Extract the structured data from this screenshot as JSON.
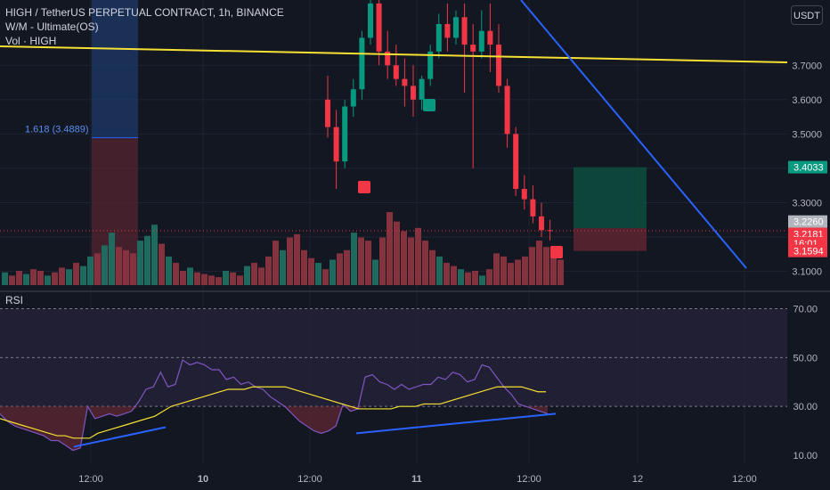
{
  "header": {
    "title": "HIGH / TetherUS PERPETUAL CONTRACT, 1h, BINANCE",
    "indicator1": "W/M - Ultimate(OS)",
    "indicator2": "Vol · HIGH",
    "currency_button": "USDT",
    "rsi_label": "RSI"
  },
  "chart_data": {
    "type": "candlestick",
    "price_axis": {
      "range": [
        3.06,
        3.89
      ],
      "ticks": [
        "3.7000",
        "3.6000",
        "3.5000",
        "3.4000",
        "3.3000",
        "3.2000",
        "3.1000"
      ]
    },
    "price_tags": [
      {
        "label": "3.4033",
        "color": "#089981"
      },
      {
        "label": "3.2260",
        "color": "#b2b5be"
      },
      {
        "label": "3.2181",
        "color": "#f23645"
      },
      {
        "label": "16:01",
        "color": "#f23645"
      },
      {
        "label": "3.1594",
        "color": "#f23645"
      }
    ],
    "fib_label": "1.618 (3.4889)",
    "fib_level": 3.4889,
    "candles": [
      {
        "o": 3.6,
        "h": 3.67,
        "l": 3.49,
        "c": 3.52
      },
      {
        "o": 3.52,
        "h": 3.57,
        "l": 3.34,
        "c": 3.42
      },
      {
        "o": 3.42,
        "h": 3.6,
        "l": 3.4,
        "c": 3.58
      },
      {
        "o": 3.58,
        "h": 3.66,
        "l": 3.55,
        "c": 3.63
      },
      {
        "o": 3.63,
        "h": 3.8,
        "l": 3.6,
        "c": 3.78
      },
      {
        "o": 3.78,
        "h": 3.9,
        "l": 3.76,
        "c": 3.88
      },
      {
        "o": 3.88,
        "h": 3.9,
        "l": 3.7,
        "c": 3.74
      },
      {
        "o": 3.74,
        "h": 3.8,
        "l": 3.66,
        "c": 3.7
      },
      {
        "o": 3.7,
        "h": 3.76,
        "l": 3.64,
        "c": 3.66
      },
      {
        "o": 3.66,
        "h": 3.72,
        "l": 3.58,
        "c": 3.64
      },
      {
        "o": 3.64,
        "h": 3.7,
        "l": 3.55,
        "c": 3.6
      },
      {
        "o": 3.6,
        "h": 3.67,
        "l": 3.57,
        "c": 3.66
      },
      {
        "o": 3.66,
        "h": 3.76,
        "l": 3.64,
        "c": 3.74
      },
      {
        "o": 3.74,
        "h": 3.85,
        "l": 3.72,
        "c": 3.82
      },
      {
        "o": 3.82,
        "h": 3.88,
        "l": 3.74,
        "c": 3.78
      },
      {
        "o": 3.78,
        "h": 3.86,
        "l": 3.76,
        "c": 3.84
      },
      {
        "o": 3.84,
        "h": 3.88,
        "l": 3.62,
        "c": 3.76
      },
      {
        "o": 3.76,
        "h": 3.82,
        "l": 3.4,
        "c": 3.74
      },
      {
        "o": 3.74,
        "h": 3.86,
        "l": 3.72,
        "c": 3.8
      },
      {
        "o": 3.8,
        "h": 3.88,
        "l": 3.68,
        "c": 3.76
      },
      {
        "o": 3.76,
        "h": 3.82,
        "l": 3.62,
        "c": 3.64
      },
      {
        "o": 3.64,
        "h": 3.66,
        "l": 3.46,
        "c": 3.5
      },
      {
        "o": 3.5,
        "h": 3.52,
        "l": 3.32,
        "c": 3.34
      },
      {
        "o": 3.34,
        "h": 3.38,
        "l": 3.28,
        "c": 3.31
      },
      {
        "o": 3.31,
        "h": 3.35,
        "l": 3.24,
        "c": 3.26
      },
      {
        "o": 3.26,
        "h": 3.3,
        "l": 3.2,
        "c": 3.22
      },
      {
        "o": 3.22,
        "h": 3.25,
        "l": 3.19,
        "c": 3.218
      }
    ],
    "volume": [
      {
        "v": 8,
        "up": true
      },
      {
        "v": 6,
        "up": false
      },
      {
        "v": 9,
        "up": false
      },
      {
        "v": 7,
        "up": true
      },
      {
        "v": 10,
        "up": false
      },
      {
        "v": 9,
        "up": false
      },
      {
        "v": 6,
        "up": true
      },
      {
        "v": 8,
        "up": false
      },
      {
        "v": 11,
        "up": false
      },
      {
        "v": 10,
        "up": true
      },
      {
        "v": 14,
        "up": false
      },
      {
        "v": 12,
        "up": true
      },
      {
        "v": 18,
        "up": true
      },
      {
        "v": 20,
        "up": false
      },
      {
        "v": 25,
        "up": true
      },
      {
        "v": 33,
        "up": true
      },
      {
        "v": 24,
        "up": false
      },
      {
        "v": 22,
        "up": false
      },
      {
        "v": 20,
        "up": false
      },
      {
        "v": 28,
        "up": true
      },
      {
        "v": 31,
        "up": true
      },
      {
        "v": 38,
        "up": true
      },
      {
        "v": 26,
        "up": false
      },
      {
        "v": 18,
        "up": true
      },
      {
        "v": 14,
        "up": false
      },
      {
        "v": 9,
        "up": false
      },
      {
        "v": 11,
        "up": true
      },
      {
        "v": 8,
        "up": false
      },
      {
        "v": 7,
        "up": false
      },
      {
        "v": 6,
        "up": false
      },
      {
        "v": 5,
        "up": false
      },
      {
        "v": 9,
        "up": true
      },
      {
        "v": 8,
        "up": false
      },
      {
        "v": 6,
        "up": false
      },
      {
        "v": 12,
        "up": true
      },
      {
        "v": 14,
        "up": false
      },
      {
        "v": 11,
        "up": false
      },
      {
        "v": 18,
        "up": false
      },
      {
        "v": 28,
        "up": false
      },
      {
        "v": 22,
        "up": true
      },
      {
        "v": 30,
        "up": false
      },
      {
        "v": 32,
        "up": false
      },
      {
        "v": 22,
        "up": false
      },
      {
        "v": 17,
        "up": false
      },
      {
        "v": 14,
        "up": true
      },
      {
        "v": 10,
        "up": false
      },
      {
        "v": 16,
        "up": true
      },
      {
        "v": 20,
        "up": false
      },
      {
        "v": 22,
        "up": false
      },
      {
        "v": 33,
        "up": true
      },
      {
        "v": 30,
        "up": false
      },
      {
        "v": 28,
        "up": false
      },
      {
        "v": 16,
        "up": true
      },
      {
        "v": 30,
        "up": false
      },
      {
        "v": 46,
        "up": false
      },
      {
        "v": 40,
        "up": false
      },
      {
        "v": 34,
        "up": false
      },
      {
        "v": 30,
        "up": false
      },
      {
        "v": 36,
        "up": false
      },
      {
        "v": 28,
        "up": false
      },
      {
        "v": 22,
        "up": false
      },
      {
        "v": 18,
        "up": true
      },
      {
        "v": 14,
        "up": false
      },
      {
        "v": 12,
        "up": false
      },
      {
        "v": 10,
        "up": true
      },
      {
        "v": 8,
        "up": false
      },
      {
        "v": 9,
        "up": false
      },
      {
        "v": 6,
        "up": true
      },
      {
        "v": 10,
        "up": false
      },
      {
        "v": 20,
        "up": false
      },
      {
        "v": 18,
        "up": false
      },
      {
        "v": 14,
        "up": false
      },
      {
        "v": 16,
        "up": false
      },
      {
        "v": 18,
        "up": false
      },
      {
        "v": 24,
        "up": false
      },
      {
        "v": 28,
        "up": false
      },
      {
        "v": 24,
        "up": false
      },
      {
        "v": 20,
        "up": false
      },
      {
        "v": 16,
        "up": false
      }
    ],
    "rsi": {
      "axis_ticks": [
        "70.00",
        "50.00",
        "30.00",
        "10.00"
      ],
      "levels": [
        70,
        50,
        30
      ],
      "range": [
        6,
        76
      ],
      "line": [
        27,
        24,
        22,
        21,
        20,
        19,
        18,
        16,
        16,
        14,
        12,
        13,
        30,
        25,
        26,
        27,
        26,
        27,
        28,
        32,
        37,
        38,
        44,
        38,
        39,
        49,
        47,
        48,
        47,
        45,
        45,
        41,
        42,
        39,
        40,
        38,
        37,
        34,
        32,
        30,
        27,
        24,
        22,
        20,
        19,
        20,
        22,
        31,
        28,
        29,
        42,
        43,
        40,
        39,
        37,
        39,
        37,
        38,
        39,
        39,
        42,
        41,
        44,
        43,
        40,
        41,
        47,
        46,
        42,
        38,
        35,
        31,
        30,
        29,
        28,
        27
      ],
      "ma": [
        25,
        24,
        23,
        22,
        21,
        20,
        19,
        18,
        18,
        17,
        17,
        17,
        19,
        20,
        21,
        22,
        23,
        24,
        25,
        26,
        28,
        30,
        31,
        32,
        33,
        34,
        35,
        36,
        37,
        37,
        37,
        38,
        38,
        38,
        38,
        38,
        37,
        36,
        35,
        34,
        33,
        32,
        31,
        30,
        29,
        29,
        29,
        29,
        29,
        30,
        30,
        30,
        31,
        31,
        31,
        32,
        33,
        34,
        35,
        36,
        37,
        38,
        38,
        38,
        38,
        37,
        36,
        36
      ]
    }
  }
}
